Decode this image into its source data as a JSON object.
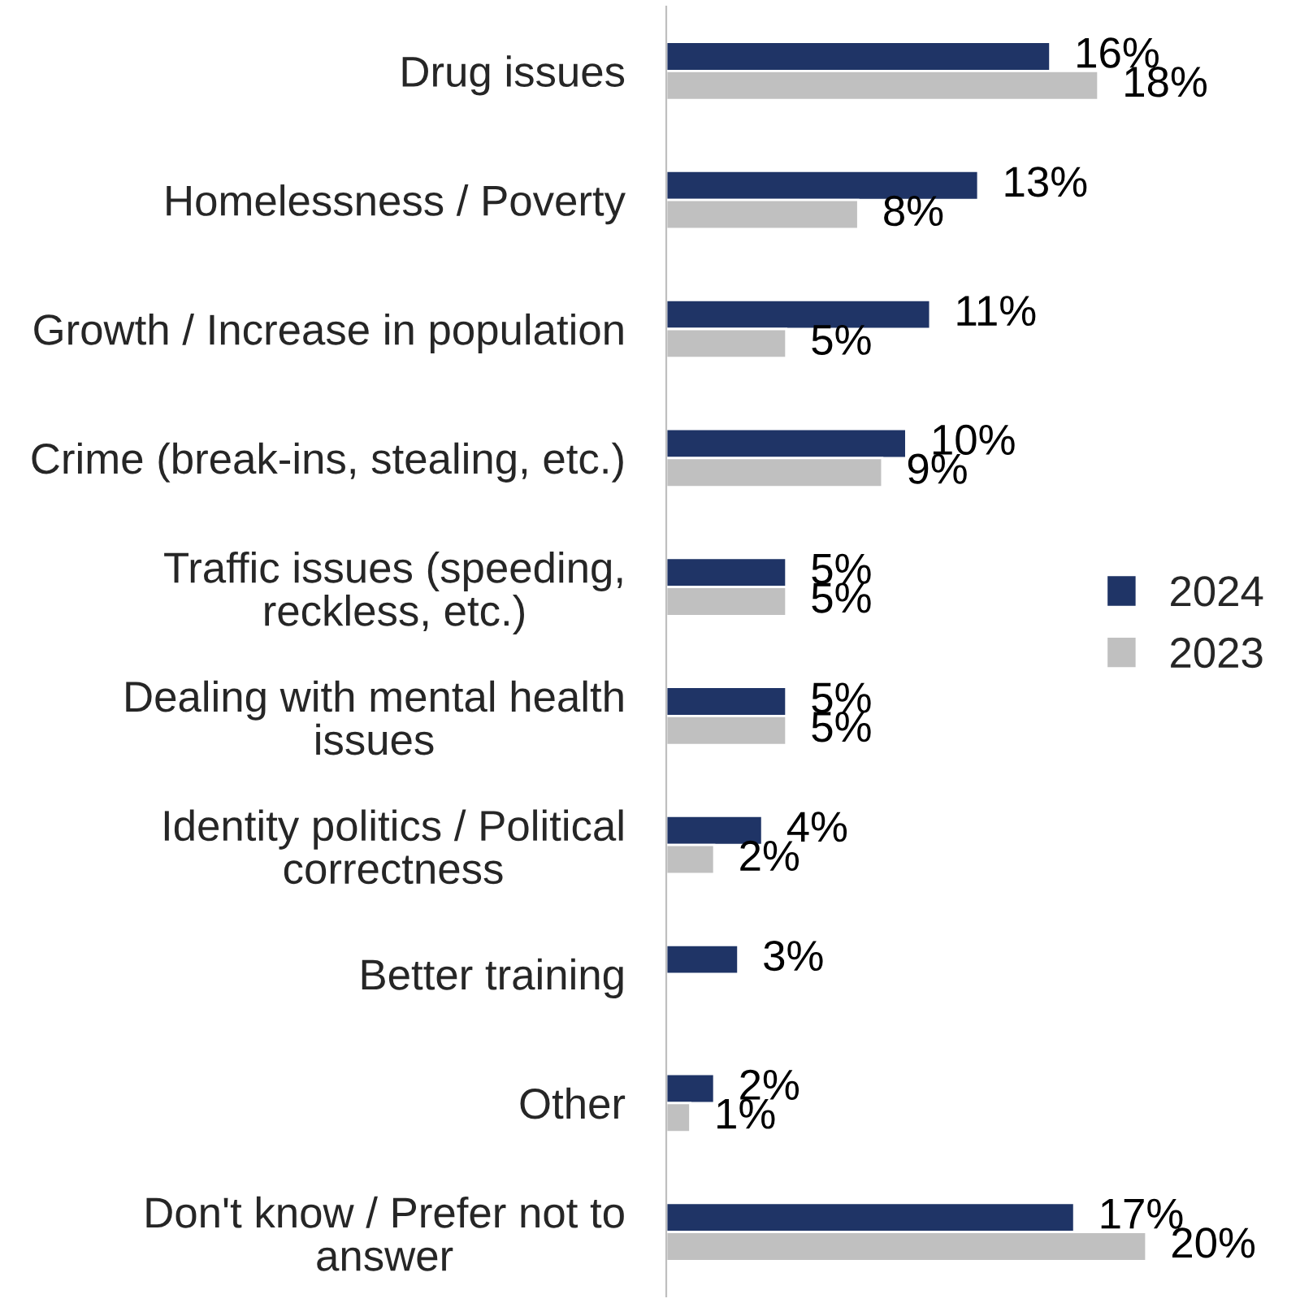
{
  "chart_data": {
    "type": "bar",
    "orientation": "horizontal",
    "categories": [
      "Drug issues",
      "Homelessness / Poverty",
      "Growth / Increase in population",
      "Crime (break-ins, stealing, etc.)",
      "Traffic issues (speeding, reckless, etc.)",
      "Dealing with mental health issues",
      "Identity politics / Political correctness",
      "Better training",
      "Other",
      "Don't know / Prefer not to answer"
    ],
    "series": [
      {
        "name": "2024",
        "color": "#1f3466",
        "values": [
          16,
          13,
          11,
          10,
          5,
          5,
          4,
          3,
          2,
          17
        ],
        "value_labels": [
          "16%",
          "13%",
          "11%",
          "10%",
          "5%",
          "5%",
          "4%",
          "3%",
          "2%",
          "17%"
        ]
      },
      {
        "name": "2023",
        "color": "#c0c0c0",
        "values": [
          18,
          8,
          5,
          9,
          5,
          5,
          2,
          null,
          1,
          20
        ],
        "value_labels": [
          "18%",
          "8%",
          "5%",
          "9%",
          "5%",
          "5%",
          "2%",
          null,
          "1%",
          "20%"
        ]
      }
    ],
    "legend": "right"
  }
}
